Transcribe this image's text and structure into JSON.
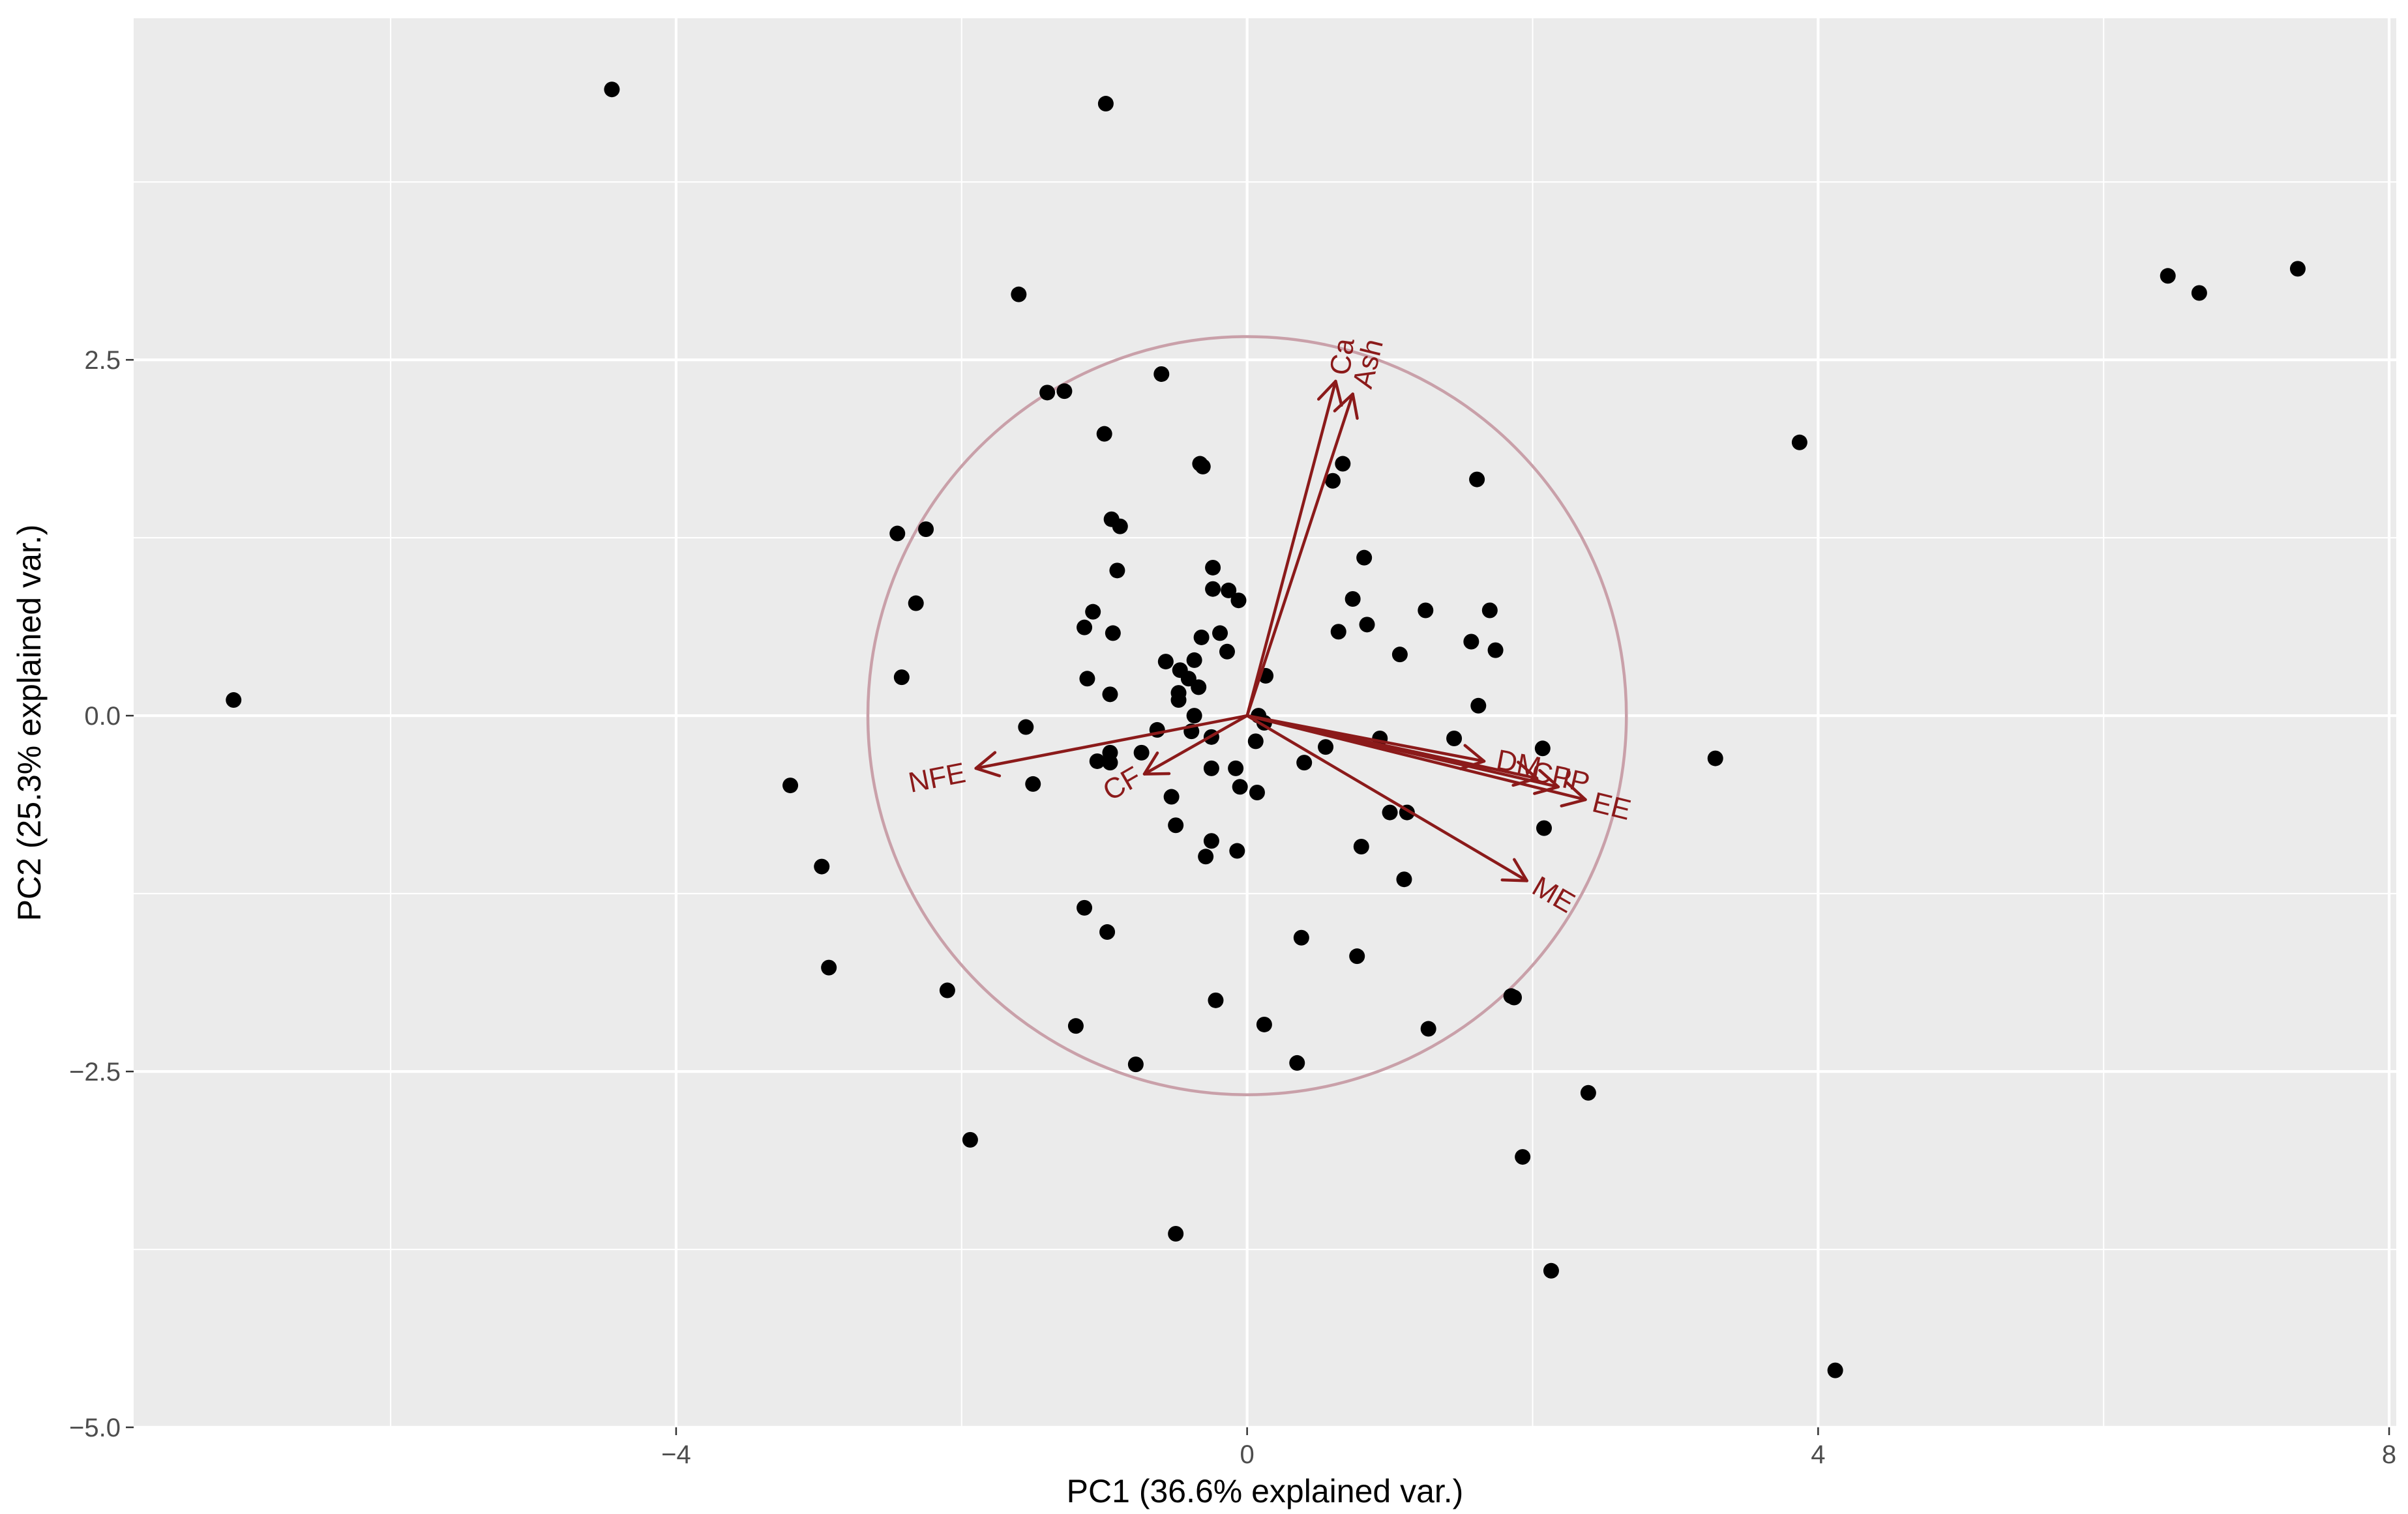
{
  "chart_data": {
    "type": "scatter",
    "title": "",
    "xlabel": "PC1 (36.6% explained var.)",
    "ylabel": "PC2 (25.3% explained var.)",
    "xlim": [
      -7.8,
      8.05
    ],
    "ylim": [
      -5.0,
      4.9
    ],
    "x_major_ticks": [
      -4,
      0,
      4,
      8
    ],
    "x_minor_ticks": [
      -6,
      -2,
      2,
      6
    ],
    "y_major_ticks": [
      -5.0,
      -2.5,
      0.0,
      2.5
    ],
    "y_minor_ticks": [
      -3.75,
      -1.25,
      1.25,
      3.75
    ],
    "x_tick_labels": [
      "−4",
      "0",
      "4",
      "8"
    ],
    "y_tick_labels": [
      "−5.0",
      "−2.5",
      "0.0",
      "2.5"
    ],
    "grid": true,
    "circle": {
      "center": [
        0,
        0
      ],
      "radius": 2.66
    },
    "points": [
      [
        -7.1,
        0.11
      ],
      [
        -4.45,
        4.4
      ],
      [
        -0.99,
        4.3
      ],
      [
        -1.6,
        2.96
      ],
      [
        -0.6,
        2.4
      ],
      [
        -1.4,
        2.27
      ],
      [
        -1.28,
        2.28
      ],
      [
        -1.0,
        1.98
      ],
      [
        -0.33,
        1.77
      ],
      [
        -0.31,
        1.75
      ],
      [
        -0.95,
        1.38
      ],
      [
        -0.89,
        1.33
      ],
      [
        -0.91,
        1.02
      ],
      [
        -2.45,
        1.28
      ],
      [
        -2.25,
        1.31
      ],
      [
        -2.32,
        0.79
      ],
      [
        -2.42,
        0.27
      ],
      [
        -1.08,
        0.73
      ],
      [
        -1.14,
        0.62
      ],
      [
        -0.94,
        0.58
      ],
      [
        -0.24,
        1.04
      ],
      [
        -0.24,
        0.89
      ],
      [
        -0.13,
        0.88
      ],
      [
        -0.06,
        0.81
      ],
      [
        -0.19,
        0.58
      ],
      [
        -0.14,
        0.45
      ],
      [
        -0.32,
        0.55
      ],
      [
        -0.37,
        0.39
      ],
      [
        -0.57,
        0.38
      ],
      [
        -0.47,
        0.32
      ],
      [
        -0.41,
        0.26
      ],
      [
        -0.34,
        0.2
      ],
      [
        -0.48,
        0.16
      ],
      [
        -0.48,
        0.11
      ],
      [
        -0.37,
        0.0
      ],
      [
        -1.12,
        0.26
      ],
      [
        -0.96,
        0.15
      ],
      [
        0.13,
        0.28
      ],
      [
        -1.55,
        -0.08
      ],
      [
        -0.63,
        -0.1
      ],
      [
        -0.39,
        -0.11
      ],
      [
        -0.25,
        -0.15
      ],
      [
        0.08,
        0.0
      ],
      [
        0.12,
        -0.05
      ],
      [
        0.06,
        -0.18
      ],
      [
        -1.05,
        -0.32
      ],
      [
        -0.96,
        -0.33
      ],
      [
        -0.96,
        -0.26
      ],
      [
        -0.74,
        -0.26
      ],
      [
        -0.25,
        -0.37
      ],
      [
        -0.08,
        -0.37
      ],
      [
        -0.05,
        -0.5
      ],
      [
        0.07,
        -0.54
      ],
      [
        -1.5,
        -0.48
      ],
      [
        -0.53,
        -0.57
      ],
      [
        -0.5,
        -0.77
      ],
      [
        -0.25,
        -0.88
      ],
      [
        -0.07,
        -0.95
      ],
      [
        -0.29,
        -0.99
      ],
      [
        -1.14,
        -1.35
      ],
      [
        -0.98,
        -1.52
      ],
      [
        -1.2,
        -2.18
      ],
      [
        -0.78,
        -2.45
      ],
      [
        -0.22,
        -2.0
      ],
      [
        0.12,
        -2.17
      ],
      [
        0.38,
        -1.56
      ],
      [
        0.35,
        -2.44
      ],
      [
        -2.1,
        -1.93
      ],
      [
        -1.94,
        -2.98
      ],
      [
        -0.5,
        -3.64
      ],
      [
        -2.93,
        -1.77
      ],
      [
        -2.98,
        -1.06
      ],
      [
        -3.2,
        -0.49
      ],
      [
        0.55,
        -0.22
      ],
      [
        0.4,
        -0.33
      ],
      [
        0.67,
        1.77
      ],
      [
        0.6,
        1.65
      ],
      [
        0.82,
        1.11
      ],
      [
        0.74,
        0.82
      ],
      [
        0.84,
        0.64
      ],
      [
        0.64,
        0.59
      ],
      [
        0.93,
        -0.16
      ],
      [
        1.07,
        0.43
      ],
      [
        1.25,
        0.74
      ],
      [
        1.61,
        1.66
      ],
      [
        1.7,
        0.74
      ],
      [
        1.57,
        0.52
      ],
      [
        1.74,
        0.46
      ],
      [
        1.62,
        0.07
      ],
      [
        1.45,
        -0.16
      ],
      [
        2.07,
        -0.23
      ],
      [
        2.08,
        -0.79
      ],
      [
        1.0,
        -0.68
      ],
      [
        1.12,
        -0.68
      ],
      [
        0.8,
        -0.92
      ],
      [
        1.1,
        -1.15
      ],
      [
        0.77,
        -1.69
      ],
      [
        1.27,
        -2.2
      ],
      [
        1.87,
        -1.98
      ],
      [
        1.85,
        -1.97
      ],
      [
        2.39,
        -2.65
      ],
      [
        1.93,
        -3.1
      ],
      [
        2.13,
        -3.9
      ],
      [
        4.12,
        -4.6
      ],
      [
        3.28,
        -0.3
      ],
      [
        3.87,
        1.92
      ],
      [
        6.45,
        3.09
      ],
      [
        6.67,
        2.97
      ],
      [
        7.36,
        3.14
      ]
    ],
    "vectors": [
      {
        "label": "Ca",
        "x": 0.62,
        "y": 2.35,
        "label_x": 0.68,
        "label_y": 2.52,
        "label_angle": -82
      },
      {
        "label": "Ash",
        "x": 0.74,
        "y": 2.26,
        "label_x": 0.86,
        "label_y": 2.47,
        "label_angle": -76
      },
      {
        "label": "NFE",
        "x": -1.9,
        "y": -0.37,
        "label_x": -2.17,
        "label_y": -0.45,
        "label_angle": -11
      },
      {
        "label": "CF",
        "x": -0.72,
        "y": -0.41,
        "label_x": -0.87,
        "label_y": -0.49,
        "label_angle": -30
      },
      {
        "label": "DM",
        "x": 1.66,
        "y": -0.32,
        "label_x": 1.9,
        "label_y": -0.35,
        "label_angle": 11
      },
      {
        "label": "CP",
        "x": 2.03,
        "y": -0.44,
        "label_x": 2.13,
        "label_y": -0.43,
        "label_angle": 12
      },
      {
        "label": "IP",
        "x": 2.18,
        "y": -0.5,
        "label_x": 2.3,
        "label_y": -0.47,
        "label_angle": 13
      },
      {
        "label": "EE",
        "x": 2.37,
        "y": -0.59,
        "label_x": 2.55,
        "label_y": -0.65,
        "label_angle": 14
      },
      {
        "label": "ME",
        "x": 1.96,
        "y": -1.16,
        "label_x": 2.14,
        "label_y": -1.27,
        "label_angle": 30
      }
    ]
  }
}
